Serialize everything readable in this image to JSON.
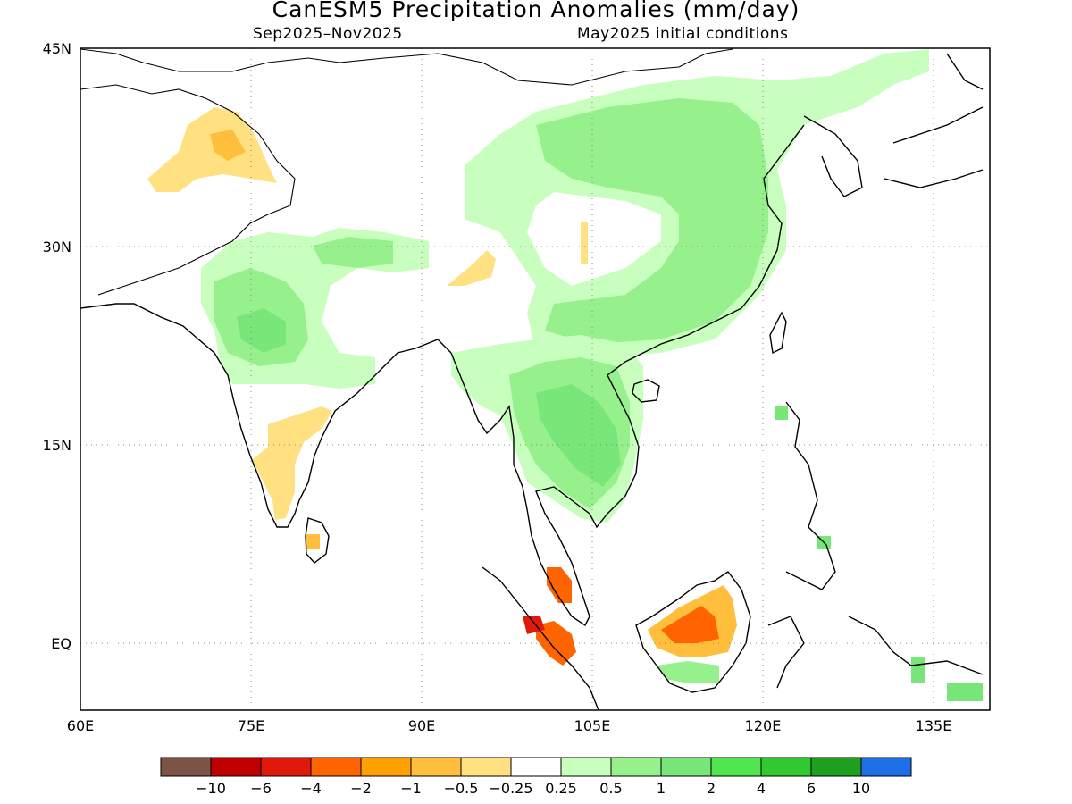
{
  "title": "CanESM5 Precipitation Anomalies (mm/day)",
  "period": "Sep2025–Nov2025",
  "initial_conditions": "May2025 initial conditions",
  "map": {
    "projection": "lat-lon",
    "lon_range": [
      60,
      140
    ],
    "lat_range": [
      -5,
      45
    ],
    "lon_ticks": [
      "60E",
      "75E",
      "90E",
      "105E",
      "120E",
      "135E"
    ],
    "lat_ticks": [
      "45N",
      "30N",
      "15N",
      "EQ"
    ],
    "grid": "dotted"
  },
  "colorbar": {
    "colors": [
      "#7b5446",
      "#c00000",
      "#e01a0a",
      "#ff6400",
      "#ffa000",
      "#ffbe3c",
      "#ffe182",
      "#ffffff",
      "#c8ffbe",
      "#96f08c",
      "#78e678",
      "#50e650",
      "#32c832",
      "#1ea01e",
      "#1e6ee6"
    ],
    "labels": [
      "−10",
      "−6",
      "−4",
      "−2",
      "−1",
      "−0.5",
      "−0.25",
      "0.25",
      "0.5",
      "1",
      "2",
      "4",
      "6",
      "10"
    ]
  },
  "anomaly_regions": [
    {
      "name": "Northeast China wet",
      "level": "0.5"
    },
    {
      "name": "Southeast Asia mainland wet",
      "level": "1"
    },
    {
      "name": "Central India wet",
      "level": "1"
    },
    {
      "name": "South India dry",
      "level": "-0.5"
    },
    {
      "name": "Borneo dry",
      "level": "-2"
    },
    {
      "name": "Sumatra dry",
      "level": "-4"
    },
    {
      "name": "Pakistan/Kashmir dry",
      "level": "-0.5"
    }
  ]
}
